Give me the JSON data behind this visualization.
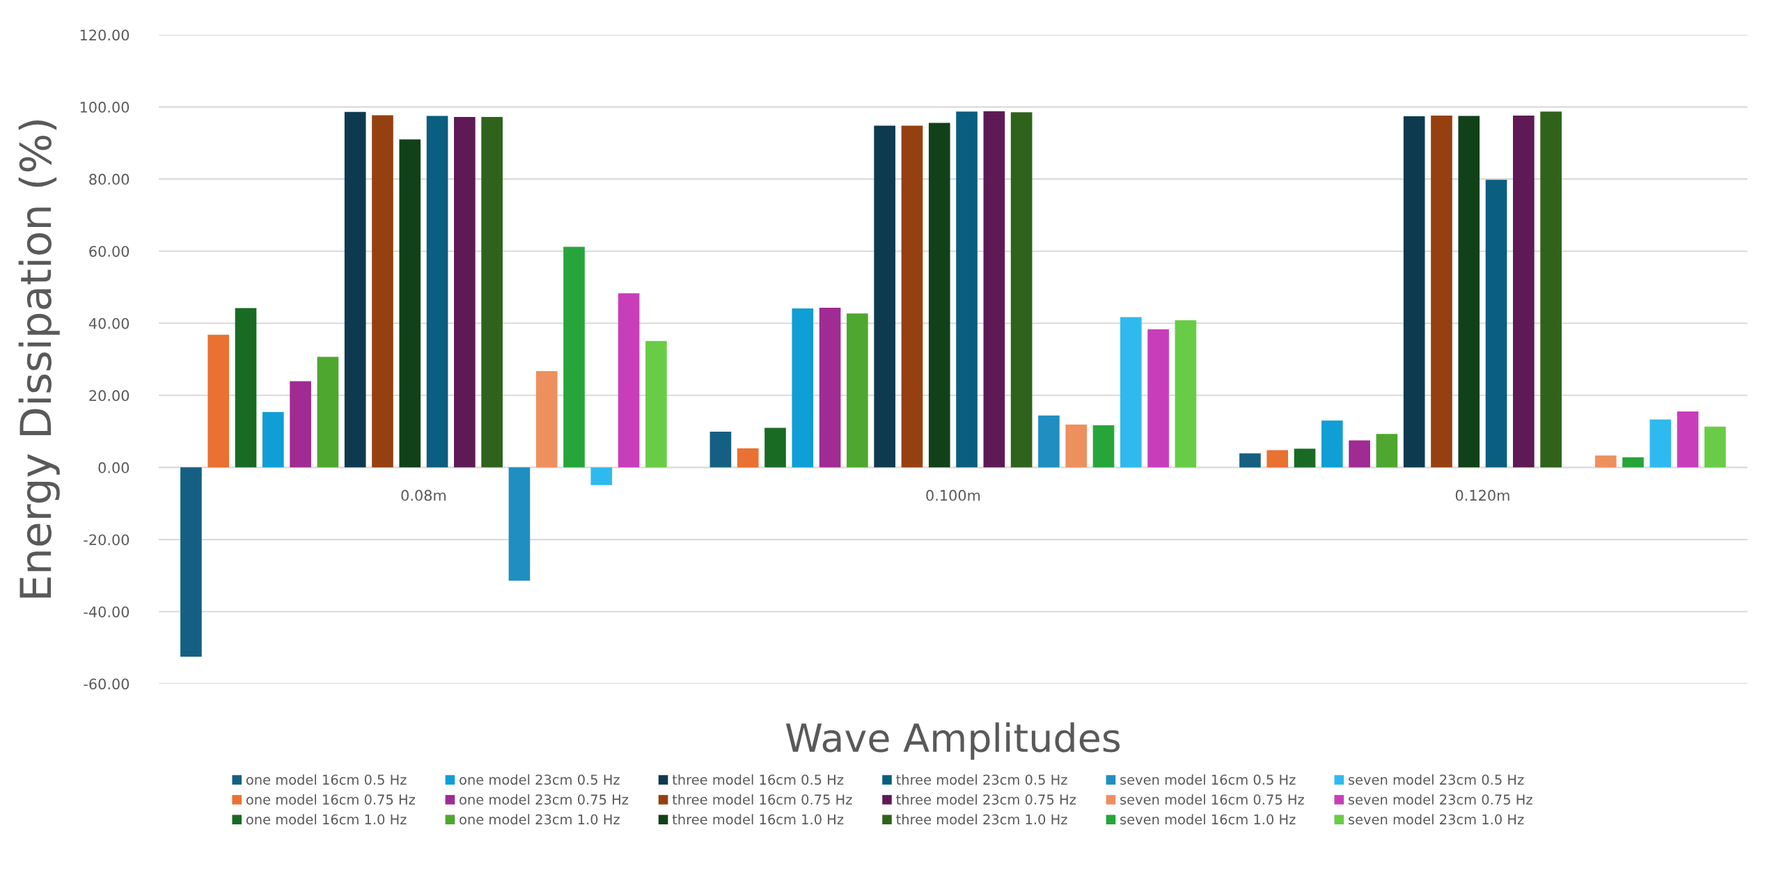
{
  "chart_data": {
    "type": "bar",
    "xlabel": "Wave Amplitudes",
    "ylabel": "Energy Dissipation (%)",
    "categories": [
      "0.08m",
      "0.100m",
      "0.120m"
    ],
    "ylim": [
      -60,
      120
    ],
    "yticks": [
      {
        "value": -60,
        "label": "-60.00"
      },
      {
        "value": -40,
        "label": "-40.00"
      },
      {
        "value": -20,
        "label": "-20.00"
      },
      {
        "value": 0,
        "label": "0.00"
      },
      {
        "value": 20,
        "label": "20.00"
      },
      {
        "value": 40,
        "label": "40.00"
      },
      {
        "value": 60,
        "label": "60.00"
      },
      {
        "value": 80,
        "label": "80.00"
      },
      {
        "value": 100,
        "label": "100.00"
      },
      {
        "value": 120,
        "label": "120.00"
      }
    ],
    "grid": "y",
    "legend": "bottom",
    "series": [
      {
        "name": "one model 16cm 0.5 Hz",
        "color": "#156082",
        "values": [
          -52.5,
          9.9,
          3.9
        ]
      },
      {
        "name": "one model 16cm 0.75 Hz",
        "color": "#e97132",
        "values": [
          36.8,
          5.3,
          4.8
        ]
      },
      {
        "name": "one model 16cm 1.0 Hz",
        "color": "#196b24",
        "values": [
          44.2,
          11.0,
          5.2
        ]
      },
      {
        "name": "one model 23cm 0.5 Hz",
        "color": "#0f9ed5",
        "values": [
          15.4,
          44.1,
          13.0
        ]
      },
      {
        "name": "one model 23cm 0.75 Hz",
        "color": "#a02b93",
        "values": [
          23.9,
          44.3,
          7.5
        ]
      },
      {
        "name": "one model 23cm 1.0 Hz",
        "color": "#4ea72e",
        "values": [
          30.7,
          42.7,
          9.3
        ]
      },
      {
        "name": "three model 16cm 0.5 Hz",
        "color": "#0e3a4f",
        "values": [
          98.6,
          94.8,
          97.4
        ]
      },
      {
        "name": "three model 16cm 0.75 Hz",
        "color": "#964011",
        "values": [
          97.7,
          94.8,
          97.6
        ]
      },
      {
        "name": "three model 16cm 1.0 Hz",
        "color": "#114119",
        "values": [
          91.0,
          95.6,
          97.5
        ]
      },
      {
        "name": "three model 23cm 0.5 Hz",
        "color": "#0a5e80",
        "values": [
          97.5,
          98.7,
          79.8
        ]
      },
      {
        "name": "three model 23cm 0.75 Hz",
        "color": "#5f1a56",
        "values": [
          97.2,
          98.8,
          97.6
        ]
      },
      {
        "name": "three model 23cm 1.0 Hz",
        "color": "#2f631b",
        "values": [
          97.2,
          98.5,
          98.7
        ]
      },
      {
        "name": "seven model 16cm 0.5 Hz",
        "color": "#1f8fc2",
        "values": [
          -31.4,
          14.4,
          null
        ]
      },
      {
        "name": "seven model 16cm 0.75 Hz",
        "color": "#ee8f5e",
        "values": [
          26.7,
          11.9,
          3.3
        ]
      },
      {
        "name": "seven model 16cm 1.0 Hz",
        "color": "#27a53b",
        "values": [
          61.2,
          11.7,
          2.8
        ]
      },
      {
        "name": "seven model 23cm 0.5 Hz",
        "color": "#2ebaee",
        "values": [
          -4.9,
          41.7,
          13.3
        ]
      },
      {
        "name": "seven model 23cm 0.75 Hz",
        "color": "#c83eba",
        "values": [
          48.3,
          38.3,
          15.5
        ]
      },
      {
        "name": "seven model 23cm 1.0 Hz",
        "color": "#69cc46",
        "values": [
          35.1,
          40.8,
          11.3
        ]
      }
    ]
  }
}
